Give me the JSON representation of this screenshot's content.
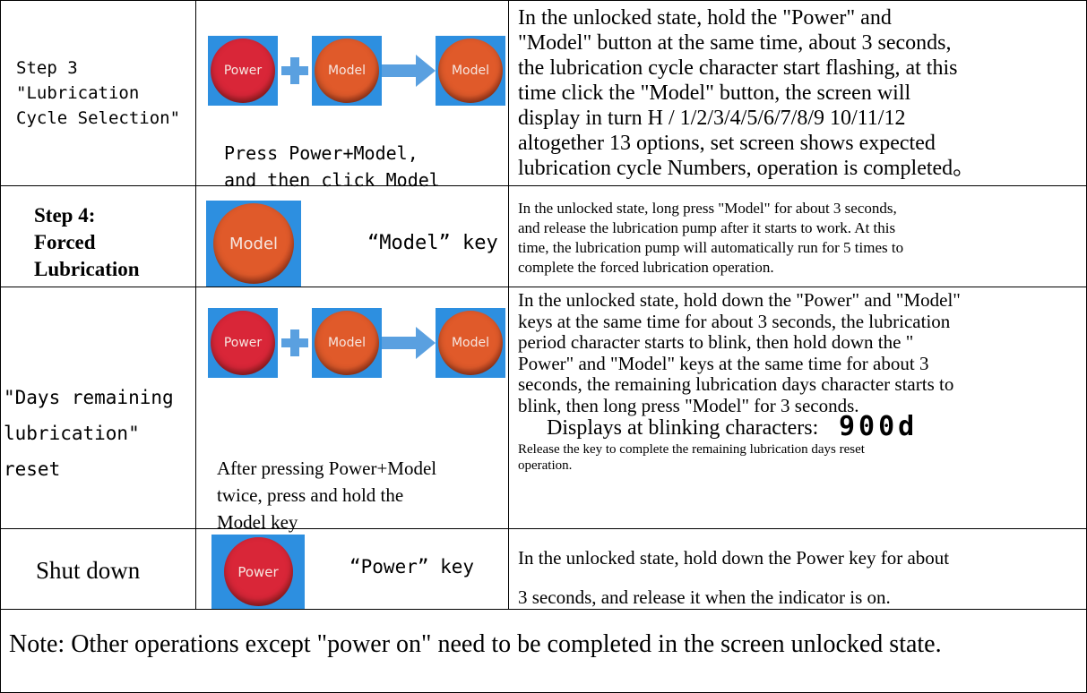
{
  "rows": [
    {
      "step": [
        "Step 3",
        "\"Lubrication",
        "Cycle Selection\""
      ],
      "buttons": [
        "Power",
        "Model",
        "Model"
      ],
      "caption": [
        "Press Power+Model,",
        "and then click Model"
      ],
      "description": [
        "In the unlocked state, hold the \"Power\" and",
        "\"Model\" button at the same time, about 3 seconds,",
        "the lubrication cycle character start flashing, at this",
        "time click the \"Model\" button, the screen will",
        "display in turn H / 1/2/3/4/5/6/7/8/9 10/11/12",
        "altogether 13 options, set screen shows expected",
        "lubrication cycle Numbers, operation is completed。"
      ]
    },
    {
      "step": [
        "Step 4:",
        "Forced",
        "Lubrication"
      ],
      "buttons": [
        "Model"
      ],
      "caption": [
        "“Model” key"
      ],
      "description": [
        "In the unlocked state, long press \"Model\" for about 3 seconds,",
        "and release the lubrication pump after it starts to work. At this",
        "time, the lubrication pump will automatically run for 5 times to",
        "complete the forced lubrication operation."
      ]
    },
    {
      "step": [
        "\"Days remaining",
        "lubrication\"",
        "reset"
      ],
      "buttons": [
        "Power",
        "Model",
        "Model"
      ],
      "caption": [
        "After pressing Power+Model",
        "twice, press and hold the",
        "Model key"
      ],
      "description": [
        "In the unlocked state, hold down the \"Power\" and \"Model\"",
        " keys at the same time for about 3 seconds, the lubrication",
        "period character starts to blink, then hold down the \"",
        "Power\" and \"Model\" keys at the same time for about 3",
        "seconds, the remaining lubrication days character starts to",
        "blink, then long press \"Model\" for 3 seconds."
      ],
      "display_label": "Displays at blinking characters:",
      "display_value": "900d",
      "footnote": [
        "Release the key to complete the remaining lubrication days reset",
        "operation."
      ]
    },
    {
      "step": [
        "Shut down"
      ],
      "buttons": [
        "Power"
      ],
      "caption": [
        "“Power” key"
      ],
      "description": [
        "In the unlocked state, hold down the Power key for about",
        "3 seconds, and release it when the indicator is on."
      ]
    }
  ],
  "note": "Note: Other operations except \"power on\" need to be completed in the screen unlocked state."
}
